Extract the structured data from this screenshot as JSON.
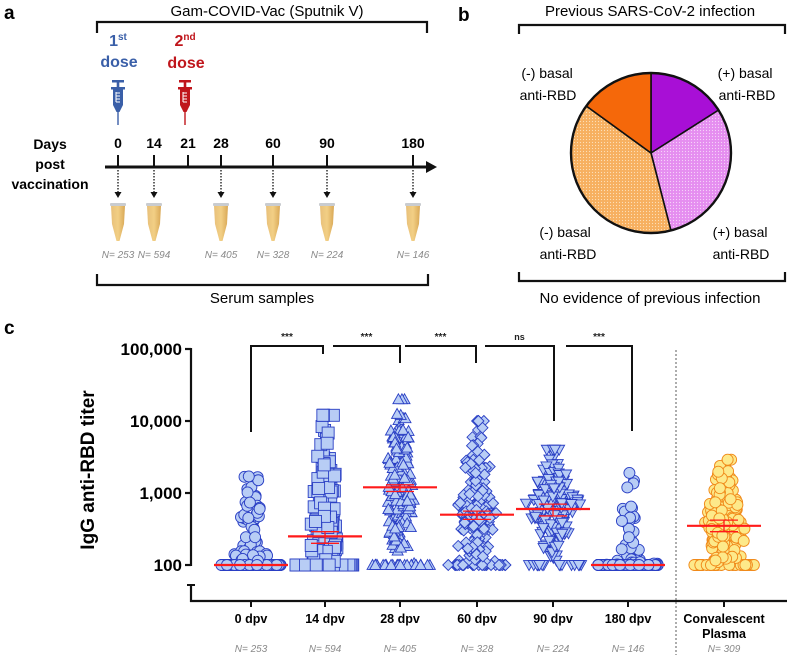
{
  "panels": {
    "a": {
      "letter": "a",
      "title": "Gam-COVID-Vac (Sputnik V)",
      "dose1": {
        "num": "1",
        "sup": "st",
        "word": "dose",
        "color": "#3a5fa8"
      },
      "dose2": {
        "num": "2",
        "sup": "nd",
        "word": "dose",
        "color": "#c0161c"
      },
      "axis_label": [
        "Days",
        "post",
        "vaccination"
      ],
      "days": [
        "0",
        "14",
        "21",
        "28",
        "60",
        "90",
        "180"
      ],
      "samples": [
        {
          "day": "0",
          "n": "N= 253"
        },
        {
          "day": "14",
          "n": "N= 594"
        },
        {
          "day": "28",
          "n": "N= 405"
        },
        {
          "day": "60",
          "n": "N= 328"
        },
        {
          "day": "90",
          "n": "N= 224"
        },
        {
          "day": "180",
          "n": "N= 146"
        }
      ],
      "bottom_label": "Serum samples"
    },
    "b": {
      "letter": "b",
      "top_label": "Previous SARS-CoV-2 infection",
      "bottom_label": "No evidence of previous infection",
      "labels": {
        "top_left": [
          "(-) basal",
          "anti-RBD"
        ],
        "top_right": [
          "(+) basal",
          "anti-RBD"
        ],
        "bottom_left": [
          "(-) basal",
          "anti-RBD"
        ],
        "bottom_right": [
          "(+) basal",
          "anti-RBD"
        ]
      }
    },
    "c": {
      "letter": "c"
    }
  },
  "chart_data": [
    {
      "type": "pie",
      "title": "Previous SARS-CoV-2 infection / No evidence of previous infection",
      "slices": [
        {
          "name": "Previous infection, (+) basal anti-RBD",
          "value": 16,
          "color": "#a80fd6",
          "pattern": false
        },
        {
          "name": "No previous infection, (+) basal anti-RBD",
          "value": 30,
          "color": "#e58ef0",
          "pattern": true
        },
        {
          "name": "No previous infection, (-) basal anti-RBD",
          "value": 39,
          "color": "#f7b060",
          "pattern": true
        },
        {
          "name": "Previous infection, (-) basal anti-RBD",
          "value": 15,
          "color": "#f5680a",
          "pattern": false
        }
      ],
      "start": "12 o'clock, clockwise"
    },
    {
      "type": "scatter",
      "title": "",
      "ylabel": "IgG anti-RBD titer",
      "yscale": "log",
      "ylim": [
        100,
        100000
      ],
      "yticks": [
        "100",
        "1,000",
        "10,000",
        "100,000"
      ],
      "ytick_values": [
        100,
        1000,
        10000,
        100000
      ],
      "categories": [
        "0 dpv",
        "14 dpv",
        "28 dpv",
        "60 dpv",
        "90 dpv",
        "180 dpv",
        "Convalescent Plasma"
      ],
      "category_lines": [
        [
          "0 dpv"
        ],
        [
          "14 dpv"
        ],
        [
          "28 dpv"
        ],
        [
          "60 dpv"
        ],
        [
          "90 dpv"
        ],
        [
          "180 dpv"
        ],
        [
          "Convalescent",
          "Plasma"
        ]
      ],
      "n_labels": [
        "N= 253",
        "N= 594",
        "N= 405",
        "N= 328",
        "N= 224",
        "N= 146",
        "N= 309"
      ],
      "groups": [
        {
          "name": "0 dpv",
          "n": 253,
          "marker": "circle",
          "median": 100,
          "ci": [
            100,
            100
          ],
          "max": 1700,
          "color": "#b8cdf5",
          "edge": "#2a3fc4"
        },
        {
          "name": "14 dpv",
          "n": 594,
          "marker": "square",
          "median": 250,
          "ci": [
            200,
            290
          ],
          "max": 12000,
          "color": "#b8cdf5",
          "edge": "#2a3fc4"
        },
        {
          "name": "28 dpv",
          "n": 405,
          "marker": "triangle-up",
          "median": 1200,
          "ci": [
            1050,
            1300
          ],
          "max": 20000,
          "min": 100,
          "color": "#b8cdf5",
          "edge": "#2a3fc4"
        },
        {
          "name": "60 dpv",
          "n": 328,
          "marker": "diamond",
          "median": 500,
          "ci": [
            430,
            560
          ],
          "max": 10000,
          "color": "#b8cdf5",
          "edge": "#2a3fc4"
        },
        {
          "name": "90 dpv",
          "n": 224,
          "marker": "triangle-down",
          "median": 600,
          "ci": [
            480,
            700
          ],
          "max": 4000,
          "color": "#b8cdf5",
          "edge": "#2a3fc4"
        },
        {
          "name": "180 dpv",
          "n": 146,
          "marker": "circle",
          "median": 100,
          "ci": [
            100,
            100
          ],
          "max": 1900,
          "color": "#b8cdf5",
          "edge": "#2a3fc4"
        },
        {
          "name": "Convalescent Plasma",
          "n": 309,
          "marker": "circle",
          "median": 350,
          "ci": [
            290,
            420
          ],
          "max": 2900,
          "color": "#fde98a",
          "edge": "#f08a1a"
        }
      ],
      "median_line_color": "#ff1a1a",
      "significance": [
        {
          "from": "0 dpv",
          "to": "14 dpv",
          "label": "***"
        },
        {
          "from": "14 dpv",
          "to": "28 dpv",
          "label": "***"
        },
        {
          "from": "28 dpv",
          "to": "60 dpv",
          "label": "***"
        },
        {
          "from": "60 dpv",
          "to": "90 dpv",
          "label": "ns"
        },
        {
          "from": "90 dpv",
          "to": "180 dpv",
          "label": "***"
        }
      ],
      "separator": "dotted line between 180 dpv and Convalescent Plasma"
    }
  ]
}
